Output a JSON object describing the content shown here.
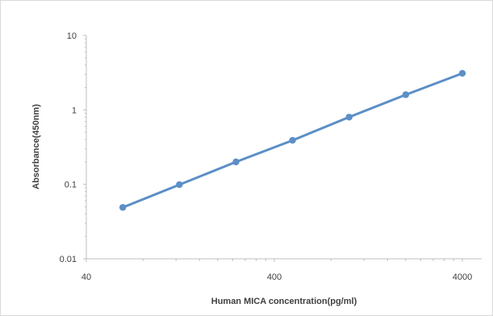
{
  "chart_data": {
    "type": "line",
    "xlabel": "Human MICA  concentration(pg/ml)",
    "ylabel": "Absorbance(450nm)",
    "x_scale": "log",
    "y_scale": "log",
    "xlim": [
      40,
      4000
    ],
    "ylim": [
      0.01,
      10
    ],
    "x_ticks": [
      {
        "value": 40,
        "label": "40"
      },
      {
        "value": 400,
        "label": "400"
      },
      {
        "value": 4000,
        "label": "4000"
      }
    ],
    "y_ticks": [
      {
        "value": 0.01,
        "label": "0.01"
      },
      {
        "value": 0.1,
        "label": "0.1"
      },
      {
        "value": 1,
        "label": "1"
      },
      {
        "value": 10,
        "label": "10"
      }
    ],
    "grid": false,
    "legend": "none",
    "series": [
      {
        "color": "#5b8fc7",
        "x": [
          62.5,
          125,
          250,
          500,
          1000,
          2000,
          4000
        ],
        "y": [
          0.049,
          0.099,
          0.2,
          0.39,
          0.8,
          1.6,
          3.1
        ]
      }
    ]
  }
}
